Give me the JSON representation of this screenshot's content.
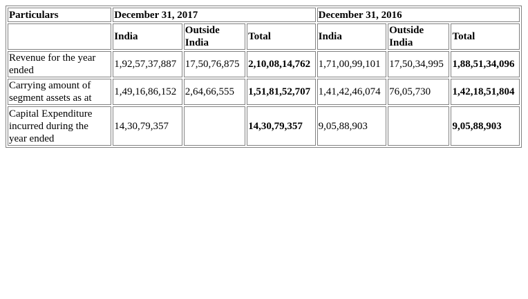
{
  "header": {
    "particulars": "Particulars",
    "period_2017": "December 31, 2017",
    "period_2016": "December 31, 2016",
    "sub": {
      "india": "India",
      "outside_line1": "Outside",
      "outside_line2": "India",
      "total": "Total"
    }
  },
  "rows": [
    {
      "label_lines": [
        "Revenue for the year",
        "ended"
      ],
      "y2017": {
        "india": "1,92,57,37,887",
        "outside": "17,50,76,875",
        "total": "2,10,08,14,762"
      },
      "y2016": {
        "india": "1,71,00,99,101",
        "outside": "17,50,34,995",
        "total": "1,88,51,34,096"
      }
    },
    {
      "label_lines": [
        "Carrying amount of",
        "segment assets as at"
      ],
      "y2017": {
        "india": "1,49,16,86,152",
        "outside": "2,64,66,555",
        "total": "1,51,81,52,707"
      },
      "y2016": {
        "india": "1,41,42,46,074",
        "outside": "76,05,730",
        "total": "1,42,18,51,804"
      }
    },
    {
      "label_lines": [
        "Capital Expenditure",
        "incurred during the",
        "year ended"
      ],
      "y2017": {
        "india": "14,30,79,357",
        "outside": "",
        "total": "14,30,79,357"
      },
      "y2016": {
        "india": "9,05,88,903",
        "outside": "",
        "total": "9,05,88,903"
      }
    }
  ]
}
